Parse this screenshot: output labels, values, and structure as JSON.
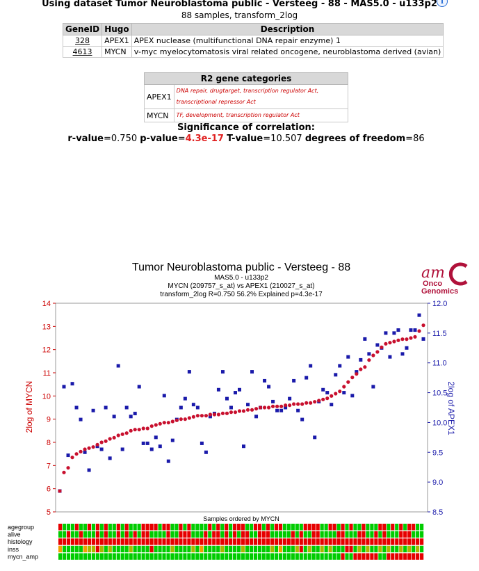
{
  "header": {
    "title": "Using dataset Tumor Neuroblastoma public - Versteeg - 88 - MAS5.0 - u133p2",
    "subtitle": "88 samples, transform_2log"
  },
  "gene_table": {
    "headers": [
      "GeneID",
      "Hugo",
      "Description"
    ],
    "rows": [
      {
        "id": "328",
        "hugo": "APEX1",
        "desc": "APEX nuclease (multifunctional DNA repair enzyme) 1"
      },
      {
        "id": "4613",
        "hugo": "MYCN",
        "desc": "v-myc myelocytomatosis viral related oncogene, neuroblastoma derived (avian)"
      }
    ]
  },
  "categories": {
    "title": "R2 gene categories",
    "rows": [
      {
        "gene": "APEX1",
        "cats": "DNA repair, drugtarget, transcription regulator Act, transcriptional repressor Act"
      },
      {
        "gene": "MYCN",
        "cats": "TF, development, transcription regulator Act"
      }
    ]
  },
  "significance": {
    "title": "Significance of correlation:",
    "r_label": "r-value",
    "r_value": "0.750",
    "p_label": "p-value",
    "p_value": "4.3e-17",
    "t_label": "T-value",
    "t_value": "10.507",
    "df_label": "degrees of freedom",
    "df_value": "86"
  },
  "chart_data": {
    "type": "scatter",
    "title": "Tumor Neuroblastoma public - Versteeg - 88",
    "subtitle_lines": [
      "MAS5.0 - u133p2",
      "MYCN (209757_s_at) vs APEX1 (210027_s_at)",
      "transform_2log R=0.750 56.2% Explained p=4.3e-17"
    ],
    "xlabel": "Samples ordered by MYCN",
    "ylabel_left": "2log of MYCN",
    "ylabel_right": "2log of APEX1",
    "y_left_range": [
      5,
      14
    ],
    "y_left_ticks": [
      "5",
      "6",
      "7",
      "8",
      "9",
      "10",
      "11",
      "12",
      "13",
      "14"
    ],
    "y_right_range": [
      8.5,
      12.0
    ],
    "y_right_ticks": [
      "8.5",
      "9.0",
      "9.5",
      "10.0",
      "10.5",
      "11.0",
      "11.5",
      "12.0"
    ],
    "colors": {
      "mycn": "#c8102e",
      "apex1": "#1a1aaa",
      "left_axis": "#cc0000",
      "right_axis": "#1a1aaa"
    },
    "series": [
      {
        "name": "MYCN",
        "axis": "left",
        "values": [
          5.9,
          6.7,
          6.9,
          7.35,
          7.5,
          7.6,
          7.7,
          7.75,
          7.8,
          7.9,
          8.0,
          8.05,
          8.15,
          8.2,
          8.3,
          8.35,
          8.4,
          8.5,
          8.55,
          8.55,
          8.6,
          8.6,
          8.7,
          8.75,
          8.8,
          8.85,
          8.85,
          8.9,
          8.95,
          9.0,
          9.0,
          9.05,
          9.1,
          9.15,
          9.15,
          9.15,
          9.2,
          9.2,
          9.2,
          9.25,
          9.25,
          9.3,
          9.3,
          9.35,
          9.35,
          9.4,
          9.4,
          9.45,
          9.5,
          9.5,
          9.5,
          9.55,
          9.55,
          9.55,
          9.6,
          9.6,
          9.65,
          9.65,
          9.65,
          9.7,
          9.7,
          9.75,
          9.8,
          9.85,
          9.9,
          10.0,
          10.1,
          10.2,
          10.4,
          10.6,
          10.8,
          10.95,
          11.15,
          11.25,
          11.55,
          11.75,
          11.9,
          12.1,
          12.25,
          12.3,
          12.35,
          12.4,
          12.45,
          12.45,
          12.5,
          12.55,
          12.8,
          13.05
        ]
      },
      {
        "name": "APEX1",
        "axis": "right",
        "values": [
          8.85,
          10.6,
          9.45,
          10.65,
          10.25,
          10.05,
          9.5,
          9.2,
          10.2,
          9.6,
          9.55,
          10.25,
          9.4,
          10.1,
          10.95,
          9.55,
          10.25,
          10.1,
          10.15,
          10.6,
          9.65,
          9.65,
          9.55,
          9.75,
          9.6,
          10.45,
          9.35,
          9.7,
          10.05,
          10.25,
          10.4,
          10.85,
          10.3,
          10.25,
          9.65,
          9.5,
          10.1,
          10.15,
          10.55,
          10.85,
          10.4,
          10.25,
          10.5,
          10.55,
          9.6,
          10.3,
          10.85,
          10.1,
          10.25,
          10.7,
          10.6,
          10.35,
          10.2,
          10.2,
          10.25,
          10.4,
          10.7,
          10.2,
          10.05,
          10.75,
          10.95,
          9.75,
          10.35,
          10.55,
          10.5,
          10.3,
          10.8,
          10.95,
          10.5,
          11.1,
          10.45,
          10.85,
          11.05,
          11.4,
          11.15,
          10.6,
          11.3,
          11.25,
          11.5,
          11.1,
          11.5,
          11.55,
          11.15,
          11.25,
          11.55,
          11.55,
          11.8,
          11.4
        ]
      }
    ],
    "tracks": {
      "labels": [
        "agegroup",
        "alive",
        "histology",
        "inss",
        "mycn_amp"
      ],
      "legend": {
        "0": "#e60000",
        "1": "#00cc00",
        "2": "#f0a000",
        "3": "#a8b800",
        "4": "#1a1acc",
        "5": "#bfbfbf"
      },
      "rows": [
        "0111011010101101011100001001101011110101010001100101001111100001100101011011100101010011",
        "1101101110101101010100111101100011101001010100110001111101011001111001110011010111000111",
        "0000000000000000000000000000000000000000000000000000000000000000000000000000000000000000",
        "2111112330313111131111011113111131211113111131111113121113013113131110013131131311313131",
        "1111111111111111111111111111111111111111111111111111111111111111111101100000011000000000"
      ]
    }
  },
  "logo": {
    "mark": "am",
    "line1": "Onco",
    "line2": "Genomics"
  }
}
